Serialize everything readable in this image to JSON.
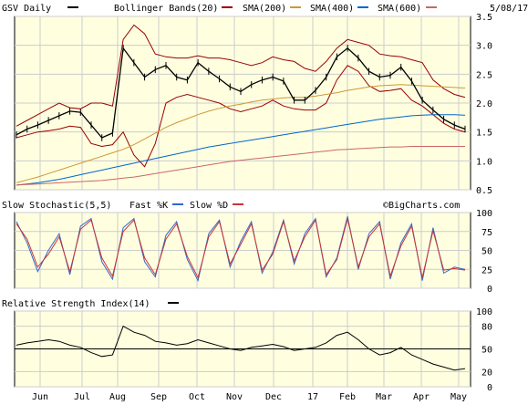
{
  "header": {
    "symbol_label": "GSV Daily",
    "bollinger_label": "Bollinger Bands(20)",
    "sma200_label": "SMA(200)",
    "sma400_label": "SMA(400)",
    "sma600_label": "SMA(600)",
    "date": "5/08/17"
  },
  "stoch_header": {
    "title": "Slow Stochastic(5,5)",
    "fast_label": "Fast %K",
    "slow_label": "Slow %D",
    "watermark": "©BigCharts.com"
  },
  "rsi_header": {
    "title": "Relative Strength Index(14)"
  },
  "colors": {
    "price": "#000000",
    "bollinger": "#990000",
    "sma200": "#cc9933",
    "sma400": "#0066cc",
    "sma600": "#cc6666",
    "fast_k": "#3366cc",
    "slow_d": "#cc3333",
    "plot_bg": "#ffffe0",
    "frame_bg": "#ffffff"
  },
  "chart_data": [
    {
      "type": "line",
      "x_ticks": [
        "Jun",
        "Jul",
        "Aug",
        "Sep",
        "Oct",
        "Nov",
        "Dec",
        "17",
        "Feb",
        "Mar",
        "Apr",
        "May"
      ],
      "y_ticks": [
        0.5,
        1.0,
        1.5,
        2.0,
        2.5,
        3.0,
        3.5
      ],
      "ylim": [
        0.5,
        3.5
      ],
      "series": [
        {
          "name": "GSV Daily",
          "values": [
            1.45,
            1.55,
            1.62,
            1.7,
            1.78,
            1.86,
            1.84,
            1.62,
            1.4,
            1.48,
            2.95,
            2.7,
            2.45,
            2.58,
            2.65,
            2.45,
            2.4,
            2.7,
            2.55,
            2.42,
            2.28,
            2.2,
            2.32,
            2.4,
            2.45,
            2.38,
            2.05,
            2.05,
            2.22,
            2.45,
            2.8,
            2.95,
            2.78,
            2.55,
            2.45,
            2.48,
            2.62,
            2.38,
            2.05,
            1.88,
            1.72,
            1.62,
            1.55
          ]
        },
        {
          "name": "Bollinger Bands(20)",
          "values": [
            1.6,
            1.7,
            1.8,
            1.9,
            2.0,
            1.92,
            1.9,
            2.0,
            2.0,
            1.95,
            3.1,
            3.35,
            3.2,
            2.85,
            2.8,
            2.78,
            2.78,
            2.82,
            2.78,
            2.78,
            2.75,
            2.7,
            2.65,
            2.7,
            2.8,
            2.75,
            2.72,
            2.6,
            2.55,
            2.72,
            2.95,
            3.1,
            3.05,
            3.0,
            2.85,
            2.82,
            2.8,
            2.75,
            2.7,
            2.4,
            2.25,
            2.15,
            2.1
          ]
        },
        {
          "name": "Bollinger Bands(20)",
          "values": [
            1.4,
            1.45,
            1.5,
            1.52,
            1.55,
            1.6,
            1.58,
            1.3,
            1.25,
            1.28,
            1.5,
            1.1,
            0.9,
            1.3,
            2.0,
            2.1,
            2.15,
            2.1,
            2.05,
            2.0,
            1.9,
            1.85,
            1.9,
            1.95,
            2.05,
            1.95,
            1.9,
            1.88,
            1.88,
            2.0,
            2.4,
            2.65,
            2.55,
            2.3,
            2.2,
            2.22,
            2.25,
            2.05,
            1.95,
            1.8,
            1.65,
            1.55,
            1.5
          ]
        },
        {
          "name": "SMA(200)",
          "values": [
            0.62,
            0.67,
            0.72,
            0.78,
            0.84,
            0.9,
            0.96,
            1.02,
            1.08,
            1.14,
            1.2,
            1.28,
            1.38,
            1.48,
            1.58,
            1.66,
            1.73,
            1.8,
            1.86,
            1.91,
            1.95,
            1.98,
            2.02,
            2.05,
            2.07,
            2.09,
            2.1,
            2.1,
            2.12,
            2.15,
            2.18,
            2.22,
            2.25,
            2.28,
            2.3,
            2.31,
            2.32,
            2.31,
            2.3,
            2.29,
            2.28,
            2.27,
            2.26
          ]
        },
        {
          "name": "SMA(400)",
          "values": [
            0.58,
            0.6,
            0.62,
            0.65,
            0.68,
            0.72,
            0.76,
            0.8,
            0.84,
            0.88,
            0.92,
            0.96,
            1.0,
            1.04,
            1.08,
            1.12,
            1.16,
            1.2,
            1.24,
            1.27,
            1.3,
            1.33,
            1.36,
            1.39,
            1.42,
            1.45,
            1.48,
            1.51,
            1.54,
            1.57,
            1.6,
            1.63,
            1.66,
            1.69,
            1.72,
            1.74,
            1.76,
            1.78,
            1.79,
            1.8,
            1.8,
            1.8,
            1.79
          ]
        },
        {
          "name": "SMA(600)",
          "values": [
            0.58,
            0.59,
            0.6,
            0.61,
            0.62,
            0.63,
            0.64,
            0.65,
            0.66,
            0.68,
            0.7,
            0.72,
            0.75,
            0.78,
            0.81,
            0.84,
            0.87,
            0.9,
            0.93,
            0.96,
            0.99,
            1.01,
            1.03,
            1.05,
            1.07,
            1.09,
            1.11,
            1.13,
            1.15,
            1.17,
            1.19,
            1.2,
            1.21,
            1.22,
            1.23,
            1.24,
            1.24,
            1.25,
            1.25,
            1.25,
            1.25,
            1.25,
            1.25
          ]
        }
      ]
    },
    {
      "type": "line",
      "x_ticks": [
        "Jun",
        "Jul",
        "Aug",
        "Sep",
        "Oct",
        "Nov",
        "Dec",
        "17",
        "Feb",
        "Mar",
        "Apr",
        "May"
      ],
      "y_ticks": [
        0,
        25,
        50,
        75,
        100
      ],
      "ylim": [
        0,
        100
      ],
      "series": [
        {
          "name": "Fast %K",
          "values": [
            88,
            60,
            22,
            50,
            72,
            18,
            82,
            92,
            35,
            12,
            80,
            92,
            35,
            15,
            70,
            88,
            38,
            10,
            72,
            90,
            28,
            62,
            88,
            20,
            48,
            90,
            32,
            72,
            92,
            15,
            40,
            95,
            25,
            72,
            88,
            12,
            60,
            85,
            10,
            80,
            20,
            28,
            25
          ]
        },
        {
          "name": "Slow %D",
          "values": [
            85,
            65,
            28,
            45,
            68,
            22,
            78,
            90,
            40,
            16,
            75,
            90,
            40,
            18,
            65,
            85,
            42,
            14,
            68,
            88,
            32,
            58,
            85,
            24,
            45,
            88,
            36,
            68,
            90,
            18,
            38,
            92,
            28,
            68,
            85,
            16,
            56,
            82,
            14,
            76,
            24,
            26,
            24
          ]
        }
      ]
    },
    {
      "type": "line",
      "x_ticks": [
        "Jun",
        "Jul",
        "Aug",
        "Sep",
        "Oct",
        "Nov",
        "Dec",
        "17",
        "Feb",
        "Mar",
        "Apr",
        "May"
      ],
      "y_ticks": [
        0,
        20,
        50,
        80,
        100
      ],
      "ylim": [
        0,
        100
      ],
      "series": [
        {
          "name": "Relative Strength Index(14)",
          "values": [
            55,
            58,
            60,
            62,
            60,
            55,
            52,
            45,
            40,
            42,
            80,
            72,
            68,
            60,
            58,
            55,
            57,
            62,
            58,
            54,
            50,
            48,
            52,
            54,
            56,
            53,
            48,
            50,
            52,
            58,
            68,
            72,
            62,
            50,
            42,
            45,
            52,
            42,
            36,
            30,
            26,
            22,
            24
          ]
        }
      ],
      "reference_lines": [
        50
      ]
    }
  ]
}
